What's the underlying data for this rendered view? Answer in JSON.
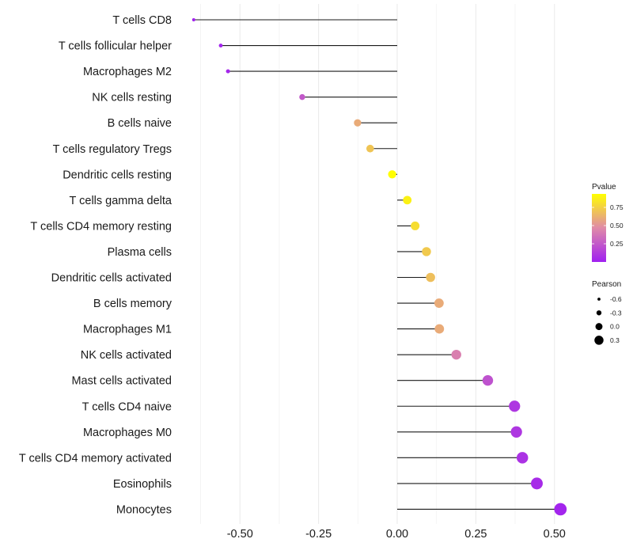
{
  "chart_data": {
    "type": "lollipop",
    "title": "",
    "xlabel": "",
    "ylabel": "",
    "xlim": [
      -0.625,
      0.525
    ],
    "x_ticks": [
      -0.5,
      -0.25,
      0.0,
      0.25,
      0.5
    ],
    "x_tick_labels": [
      "-0.50",
      "-0.25",
      "0.00",
      "0.25",
      "0.50"
    ],
    "grid": true,
    "categories": [
      "T cells CD8",
      "T cells follicular helper",
      "Macrophages M2",
      "NK cells resting",
      "B cells naive",
      "T cells regulatory  Tregs ",
      "Dendritic cells resting",
      "T cells gamma delta",
      "T cells CD4 memory resting",
      "Plasma cells",
      "Dendritic cells activated",
      "B cells memory",
      "Macrophages M1",
      "NK cells activated",
      "Mast cells activated",
      "T cells CD4 naive",
      "Macrophages M0",
      "T cells CD4 memory activated",
      "Eosinophils",
      "Monocytes"
    ],
    "pearson": [
      -0.647,
      -0.561,
      -0.538,
      -0.302,
      -0.126,
      -0.086,
      -0.016,
      0.032,
      0.057,
      0.093,
      0.106,
      0.133,
      0.134,
      0.188,
      0.288,
      0.373,
      0.379,
      0.398,
      0.444,
      0.519
    ],
    "pvalue": [
      0.01,
      0.02,
      0.03,
      0.25,
      0.6,
      0.7,
      0.93,
      0.88,
      0.8,
      0.72,
      0.68,
      0.6,
      0.6,
      0.42,
      0.22,
      0.1,
      0.1,
      0.08,
      0.05,
      0.02
    ],
    "legend": {
      "color": {
        "title": "Pvalue",
        "ticks": [
          0.25,
          0.5,
          0.75
        ],
        "tick_labels": [
          "0.25",
          "0.50",
          "0.75"
        ],
        "range": [
          0.0,
          0.935
        ],
        "low_color": "#A020F0",
        "mid_color": "#E08AA8",
        "high_color": "#FFFF00"
      },
      "size": {
        "title": "Pearson",
        "values": [
          -0.6,
          -0.3,
          0.0,
          0.3
        ],
        "labels": [
          "-0.6",
          "-0.3",
          "0.0",
          "0.3"
        ]
      },
      "position": "right"
    }
  }
}
